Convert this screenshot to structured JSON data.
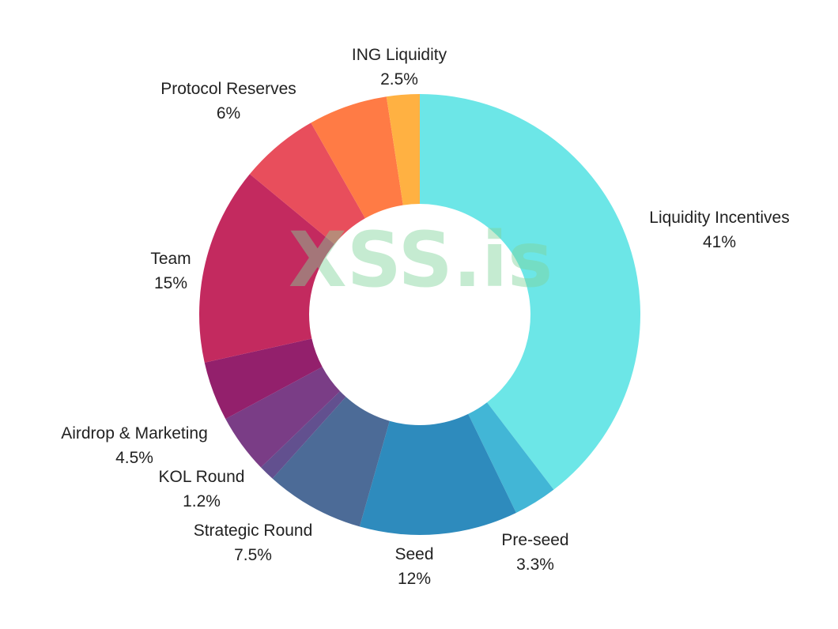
{
  "chart_data": {
    "type": "pie",
    "donut": true,
    "start": "top, clockwise",
    "slices": [
      {
        "label": "Liquidity Incentives",
        "value": 41,
        "value_label": "41%",
        "color": "#6ce6e7"
      },
      {
        "label": "Pre-seed",
        "value": 3.3,
        "value_label": "3.3%",
        "color": "#42b6d6"
      },
      {
        "label": "Seed",
        "value": 12,
        "value_label": "12%",
        "color": "#2e8bbd"
      },
      {
        "label": "Strategic Round",
        "value": 7.5,
        "value_label": "7.5%",
        "color": "#4c6b97"
      },
      {
        "label": "KOL Round",
        "value": 1.2,
        "value_label": "1.2%",
        "color": "#62508f"
      },
      {
        "label": "Airdrop & Marketing",
        "value": 4.5,
        "value_label": "4.5%",
        "color": "#7a3d86"
      },
      {
        "label": "",
        "value": 4.5,
        "value_label": "",
        "color": "#93206c"
      },
      {
        "label": "Team",
        "value": 15,
        "value_label": "15%",
        "color": "#c32a5f"
      },
      {
        "label": "",
        "value": 6,
        "value_label": "",
        "color": "#e84e5c"
      },
      {
        "label": "Protocol Reserves",
        "value": 6,
        "value_label": "6%",
        "color": "#ff7b45"
      },
      {
        "label": "ING Liquidity",
        "value": 2.5,
        "value_label": "2.5%",
        "color": "#ffb142"
      }
    ]
  },
  "watermark": "XSS.is"
}
